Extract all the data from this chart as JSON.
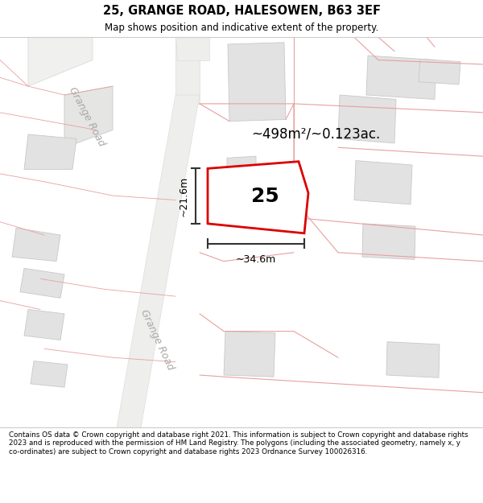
{
  "title_line1": "25, GRANGE ROAD, HALESOWEN, B63 3EF",
  "title_line2": "Map shows position and indicative extent of the property.",
  "footer_text": "Contains OS data © Crown copyright and database right 2021. This information is subject to Crown copyright and database rights 2023 and is reproduced with the permission of HM Land Registry. The polygons (including the associated geometry, namely x, y co-ordinates) are subject to Crown copyright and database rights 2023 Ordnance Survey 100026316.",
  "area_label": "~498m²/~0.123ac.",
  "number_label": "25",
  "dim_width": "~34.6m",
  "dim_height": "~21.6m",
  "road_label_upper": "Grange Road",
  "road_label_lower": "Grange Road",
  "map_bg": "#f7f6f4",
  "title_bg": "#ffffff",
  "footer_bg": "#ffffff",
  "red_poly_color": "#dd0000",
  "building_fill": "#e2e2e2",
  "building_edge": "#c8c8c8",
  "pink_line_color": "#e8a0a0",
  "road_fill": "#ffffff",
  "road_edge": "#d0d0d0",
  "dim_line_color": "#333333",
  "road_text_color": "#aaaaaa"
}
